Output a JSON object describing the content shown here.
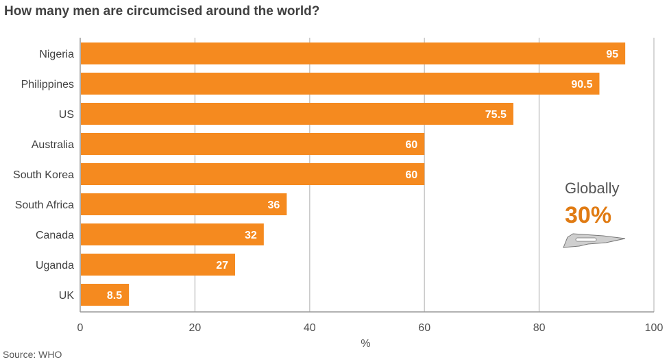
{
  "chart_data": {
    "type": "bar",
    "orientation": "horizontal",
    "title": "How many men are circumcised around the world?",
    "categories": [
      "Nigeria",
      "Philippines",
      "US",
      "Australia",
      "South Korea",
      "South Africa",
      "Canada",
      "Uganda",
      "UK"
    ],
    "values": [
      95,
      90.5,
      75.5,
      60,
      60,
      36,
      32,
      27,
      8.5
    ],
    "value_labels": [
      "95",
      "90.5",
      "75.5",
      "60",
      "60",
      "36",
      "32",
      "27",
      "8.5"
    ],
    "xlabel": "%",
    "xlim": [
      0,
      100
    ],
    "xticks": [
      "0",
      "20",
      "40",
      "60",
      "80",
      "100"
    ],
    "grid": true,
    "bar_color": "#f58a1f",
    "annotation": {
      "label": "Globally",
      "value": "30%",
      "value_color": "#e07b13",
      "icon": "scalpel-icon"
    },
    "source": "Source: WHO"
  }
}
